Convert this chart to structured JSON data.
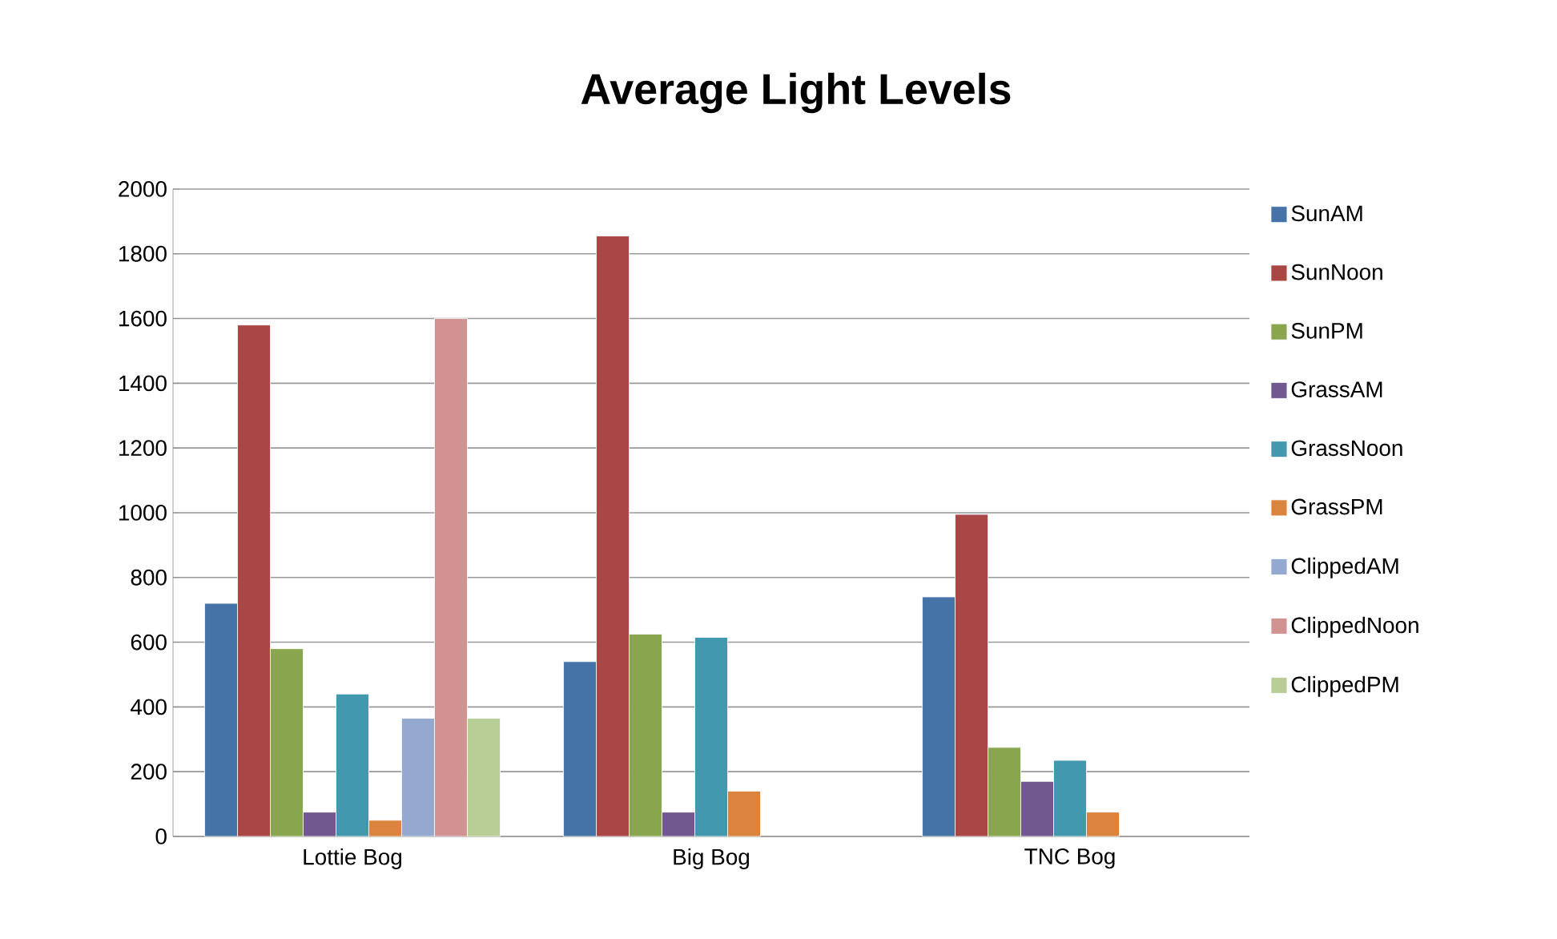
{
  "chart_data": {
    "type": "bar",
    "title": "Average Light Levels",
    "categories": [
      "Lottie Bog",
      "Big Bog",
      "TNC Bog"
    ],
    "series": [
      {
        "name": "SunAM",
        "color": "#4572a7",
        "values": [
          720,
          540,
          740
        ]
      },
      {
        "name": "SunNoon",
        "color": "#aa4643",
        "values": [
          1580,
          1855,
          995
        ]
      },
      {
        "name": "SunPM",
        "color": "#89a54e",
        "values": [
          580,
          625,
          275
        ]
      },
      {
        "name": "GrassAM",
        "color": "#71588f",
        "values": [
          75,
          75,
          170
        ]
      },
      {
        "name": "GrassNoon",
        "color": "#4198af",
        "values": [
          440,
          615,
          235
        ]
      },
      {
        "name": "GrassPM",
        "color": "#db843d",
        "values": [
          50,
          140,
          75
        ]
      },
      {
        "name": "ClippedAM",
        "color": "#93a9cf",
        "values": [
          365,
          null,
          null
        ]
      },
      {
        "name": "ClippedNoon",
        "color": "#d19392",
        "values": [
          1600,
          null,
          null
        ]
      },
      {
        "name": "ClippedPM",
        "color": "#b9cd96",
        "values": [
          365,
          null,
          null
        ]
      }
    ],
    "ylim": [
      0,
      2000
    ],
    "yticks": [
      0,
      200,
      400,
      600,
      800,
      1000,
      1200,
      1400,
      1600,
      1800,
      2000
    ],
    "grid": "y",
    "legend": "right"
  }
}
